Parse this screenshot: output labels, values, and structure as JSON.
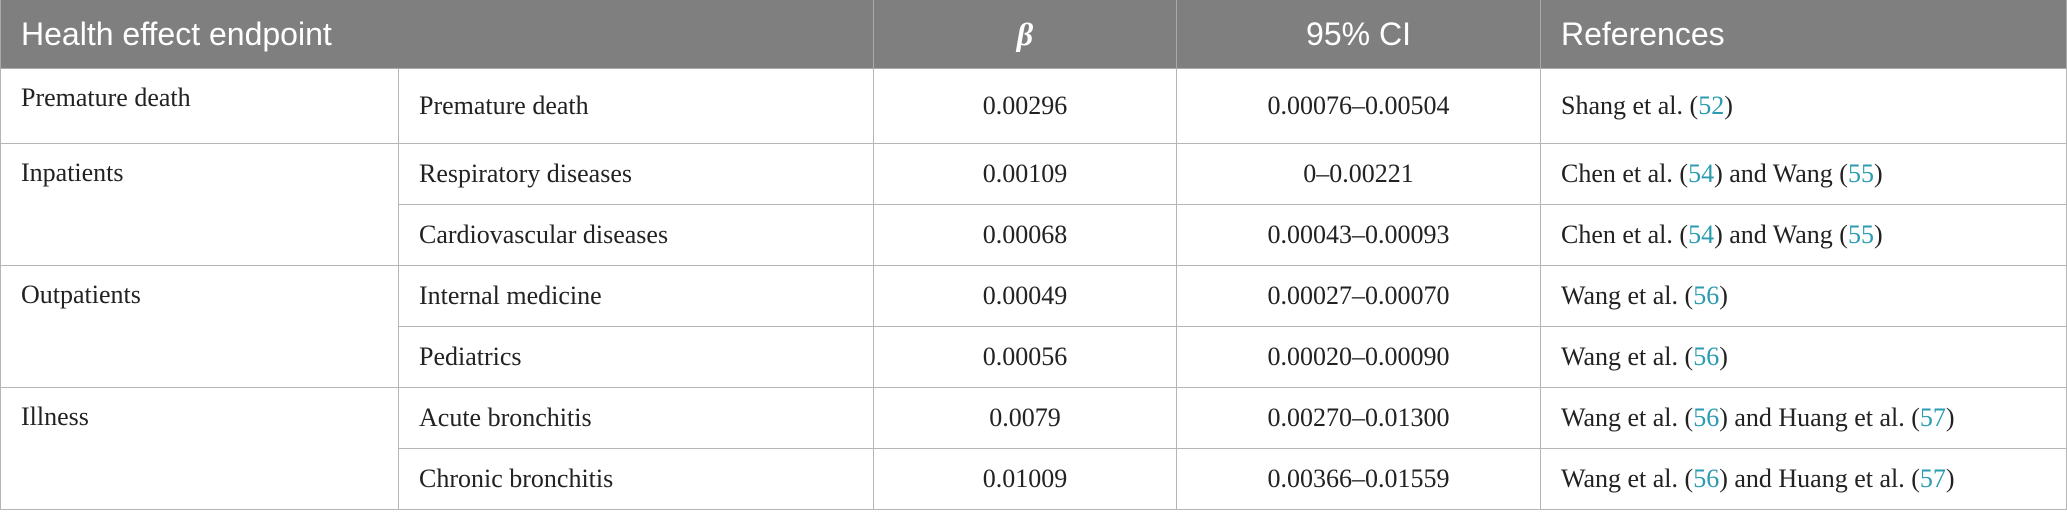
{
  "table": {
    "header": [
      "Health effect endpoint",
      "β",
      "95% CI",
      "References"
    ],
    "groups": [
      {
        "name": "Premature death",
        "rows": [
          {
            "endpoint": "Premature death",
            "beta": "0.00296",
            "ci": "0.00076–0.00504",
            "refs": [
              {
                "text": "Shang et al. ("
              },
              {
                "ref": "52"
              },
              {
                "text": ")"
              }
            ]
          }
        ]
      },
      {
        "name": "Inpatients",
        "rows": [
          {
            "endpoint": "Respiratory diseases",
            "beta": "0.00109",
            "ci": "0–0.00221",
            "refs": [
              {
                "text": "Chen et al. ("
              },
              {
                "ref": "54"
              },
              {
                "text": ") and Wang ("
              },
              {
                "ref": "55"
              },
              {
                "text": ")"
              }
            ]
          },
          {
            "endpoint": "Cardiovascular diseases",
            "beta": "0.00068",
            "ci": "0.00043–0.00093",
            "refs": [
              {
                "text": "Chen et al. ("
              },
              {
                "ref": "54"
              },
              {
                "text": ") and Wang ("
              },
              {
                "ref": "55"
              },
              {
                "text": ")"
              }
            ]
          }
        ]
      },
      {
        "name": "Outpatients",
        "rows": [
          {
            "endpoint": "Internal medicine",
            "beta": "0.00049",
            "ci": "0.00027–0.00070",
            "refs": [
              {
                "text": "Wang et al. ("
              },
              {
                "ref": "56"
              },
              {
                "text": ")"
              }
            ]
          },
          {
            "endpoint": "Pediatrics",
            "beta": "0.00056",
            "ci": "0.00020–0.00090",
            "refs": [
              {
                "text": "Wang et al. ("
              },
              {
                "ref": "56"
              },
              {
                "text": ")"
              }
            ]
          }
        ]
      },
      {
        "name": "Illness",
        "rows": [
          {
            "endpoint": "Acute bronchitis",
            "beta": "0.0079",
            "ci": "0.00270–0.01300",
            "refs": [
              {
                "text": "Wang et al. ("
              },
              {
                "ref": "56"
              },
              {
                "text": ") and Huang et al. ("
              },
              {
                "ref": "57"
              },
              {
                "text": ")"
              }
            ]
          },
          {
            "endpoint": "Chronic bronchitis",
            "beta": "0.01009",
            "ci": "0.00366–0.01559",
            "refs": [
              {
                "text": "Wang et al. ("
              },
              {
                "ref": "56"
              },
              {
                "text": ") and Huang et al. ("
              },
              {
                "ref": "57"
              },
              {
                "text": ")"
              }
            ]
          }
        ]
      }
    ]
  }
}
